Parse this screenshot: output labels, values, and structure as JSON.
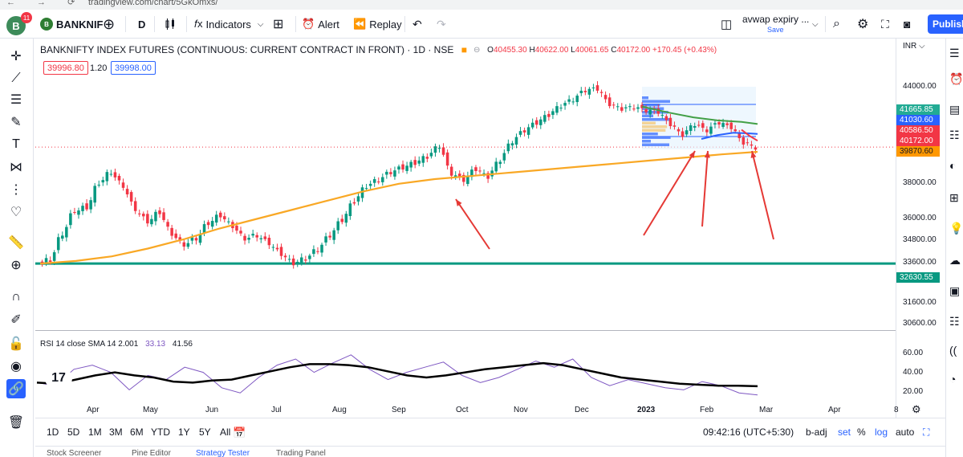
{
  "browser": {
    "url": "tradingview.com/chart/5GkOmxs/"
  },
  "topbar": {
    "avatar_letter": "B",
    "notification_count": "11",
    "symbol": "BANKNIF",
    "interval": "D",
    "indicators_label": "Indicators",
    "alert_label": "Alert",
    "replay_label": "Replay",
    "layout_name": "avwap expiry ...",
    "save_label": "Save",
    "publish_label": "Publish"
  },
  "legend": {
    "title": "BANKNIFTY INDEX FUTURES (CONTINUOUS: CURRENT CONTRACT IN FRONT) · 1D · NSE",
    "open_key": "O",
    "open_val": "40455.30",
    "high_key": "H",
    "high_val": "40622.00",
    "low_key": "L",
    "low_val": "40061.65",
    "close_key": "C",
    "close_val": "40172.00",
    "change": "+170.45 (+0.43%)",
    "sell_price": "39996.80",
    "spread": "1.20",
    "buy_price": "39998.00"
  },
  "rsi_legend": {
    "label": "RSI 14 close SMA 14 2.001",
    "rsi_val": "33.13",
    "sma_val": "41.56"
  },
  "price_axis": {
    "currency": "INR",
    "ticks": [
      "44000.00",
      "38000.00",
      "36000.00",
      "34800.00",
      "33600.00",
      "31600.00",
      "30600.00",
      "60.00",
      "40.00",
      "20.00"
    ],
    "labels": [
      {
        "text": "41665.85",
        "color": "#22ab94"
      },
      {
        "text": "41030.60",
        "color": "#2962ff"
      },
      {
        "text": "40586.50",
        "color": "#f23645"
      },
      {
        "text": "40172.00",
        "color": "#f23645"
      },
      {
        "text": "39870.60",
        "color": "#ff9800"
      },
      {
        "text": "32630.55",
        "color": "#089981"
      }
    ]
  },
  "time_axis": {
    "ticks": [
      "Apr",
      "May",
      "Jun",
      "Jul",
      "Aug",
      "Sep",
      "Oct",
      "Nov",
      "Dec",
      "2023",
      "Feb",
      "Mar",
      "Apr",
      "8"
    ]
  },
  "bottombar": {
    "ranges": [
      "1D",
      "5D",
      "1M",
      "3M",
      "6M",
      "YTD",
      "1Y",
      "5Y",
      "All"
    ],
    "clock": "09:42:16 (UTC+5:30)",
    "b_adj": "b-adj",
    "set": "set",
    "pct": "%",
    "log": "log",
    "auto": "auto"
  },
  "panels": [
    "Stock Screener",
    "Pine Editor",
    "Strategy Tester",
    "Trading Panel"
  ],
  "chart_data": {
    "type": "candlestick",
    "title": "BANKNIFTY INDEX FUTURES (CONTINUOUS: CURRENT CONTRACT IN FRONT) · 1D · NSE",
    "x_ticks": [
      "Apr",
      "May",
      "Jun",
      "Jul",
      "Aug",
      "Sep",
      "Oct",
      "Nov",
      "Dec",
      "2023",
      "Feb",
      "Mar",
      "Apr"
    ],
    "price_closes": [
      32900,
      34600,
      36100,
      36300,
      37900,
      38600,
      37700,
      36200,
      35400,
      36000,
      34600,
      33900,
      34300,
      35300,
      35800,
      35100,
      34300,
      34500,
      34000,
      33300,
      32700,
      33000,
      33600,
      34500,
      35500,
      36700,
      37700,
      38100,
      38600,
      38900,
      39200,
      39600,
      40300,
      38500,
      38100,
      38800,
      38300,
      39400,
      40600,
      41300,
      41800,
      42300,
      42900,
      43300,
      43900,
      44000,
      43000,
      42700,
      42800,
      42600,
      42500,
      41700,
      41000,
      41700,
      41300,
      41800,
      41500,
      40500,
      40172
    ],
    "vwap_line": [
      32630,
      32800,
      33100,
      33600,
      34200,
      34900,
      35500,
      36100,
      36700,
      37300,
      37800,
      38100,
      38300,
      38500,
      38700,
      38900,
      39100,
      39300,
      39500,
      39700,
      39870
    ],
    "rsi_values": [
      45,
      42,
      58,
      62,
      55,
      38,
      52,
      48,
      60,
      55,
      40,
      35,
      50,
      62,
      68,
      55,
      64,
      72,
      58,
      48,
      55,
      60,
      65,
      52,
      45,
      50,
      58,
      66,
      60,
      68,
      50,
      42,
      48,
      44,
      40,
      38,
      46,
      42,
      35,
      33
    ],
    "rsi_sma": [
      45,
      44,
      48,
      52,
      55,
      52,
      50,
      46,
      45,
      47,
      48,
      52,
      56,
      60,
      63,
      63,
      62,
      60,
      56,
      52,
      50,
      52,
      55,
      58,
      60,
      62,
      64,
      62,
      58,
      54,
      50,
      48,
      46,
      44,
      43,
      42,
      42,
      41.5
    ],
    "levels": {
      "horizontal_support": 32630.55,
      "vwap": 39870.6,
      "green_line": 41665.85,
      "blue_line": 41030.6,
      "red_line": 40586.5,
      "last": 40172.0
    }
  }
}
